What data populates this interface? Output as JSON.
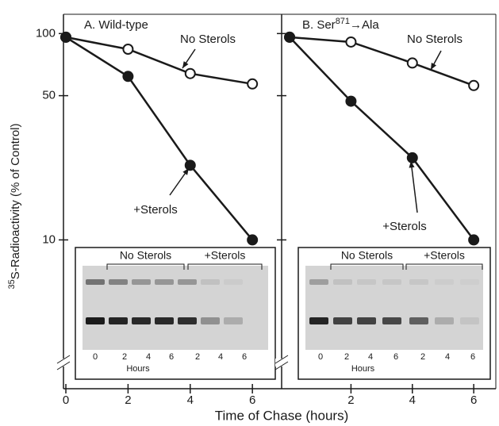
{
  "figure": {
    "ylabel_sup": "35",
    "ylabel": "S-Radioactivity (% of Control)",
    "xlabel": "Time of Chase (hours)"
  },
  "chart_data": [
    {
      "type": "line",
      "title": "A. Wild-type",
      "log_y": true,
      "x": [
        0,
        2,
        4,
        6
      ],
      "series": [
        {
          "name": "No Sterols",
          "color": "#1a1a1a",
          "marker": "open",
          "values": [
            96,
            84,
            64,
            57
          ]
        },
        {
          "name": "+Sterols",
          "color": "#1a1a1a",
          "marker": "filled",
          "values": [
            96,
            62,
            23,
            10
          ]
        }
      ],
      "xlim": [
        -0.077,
        6.94
      ],
      "xticks": [
        0,
        2,
        4,
        6
      ],
      "ylim": [
        1.9,
        124
      ],
      "yticks": [
        10,
        50,
        100
      ],
      "inset": {
        "groups": [
          "No Sterols",
          "+Sterols"
        ],
        "lanes": [
          "0",
          "2",
          "4",
          "6",
          "2",
          "4",
          "6"
        ],
        "lanes_label": "Hours"
      }
    },
    {
      "type": "line",
      "title_prefix": "B. Ser",
      "title_sup": "871",
      "title_suffix": "→Ala",
      "log_y": true,
      "x": [
        0,
        2,
        4,
        6
      ],
      "series": [
        {
          "name": "No Sterols",
          "color": "#1a1a1a",
          "marker": "open",
          "values": [
            96,
            91,
            72,
            56
          ]
        },
        {
          "name": "+Sterols",
          "color": "#1a1a1a",
          "marker": "filled",
          "values": [
            96,
            47,
            25,
            10
          ]
        }
      ],
      "xlim": [
        -0.26,
        6.72
      ],
      "xticks": [
        2,
        4,
        6
      ],
      "ylim": [
        1.9,
        124
      ],
      "inset": {
        "groups": [
          "No Sterols",
          "+Sterols"
        ],
        "lanes": [
          "0",
          "2",
          "4",
          "6",
          "2",
          "4",
          "6"
        ],
        "lanes_label": "Hours"
      }
    }
  ]
}
